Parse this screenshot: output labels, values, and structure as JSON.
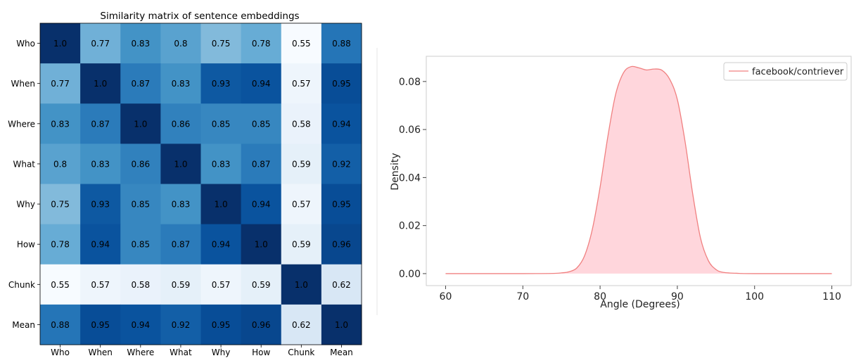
{
  "chart_data": [
    {
      "type": "heatmap",
      "title": "Similarity matrix of sentence embeddings",
      "x_labels": [
        "Who",
        "When",
        "Where",
        "What",
        "Why",
        "How",
        "Chunk",
        "Mean"
      ],
      "y_labels": [
        "Who",
        "When",
        "Where",
        "What",
        "Why",
        "How",
        "Chunk",
        "Mean"
      ],
      "values": [
        [
          "1.0",
          "0.77",
          "0.83",
          "0.8",
          "0.75",
          "0.78",
          "0.55",
          "0.88"
        ],
        [
          "0.77",
          "1.0",
          "0.87",
          "0.83",
          "0.93",
          "0.94",
          "0.57",
          "0.95"
        ],
        [
          "0.83",
          "0.87",
          "1.0",
          "0.86",
          "0.85",
          "0.85",
          "0.58",
          "0.94"
        ],
        [
          "0.8",
          "0.83",
          "0.86",
          "1.0",
          "0.83",
          "0.87",
          "0.59",
          "0.92"
        ],
        [
          "0.75",
          "0.93",
          "0.85",
          "0.83",
          "1.0",
          "0.94",
          "0.57",
          "0.95"
        ],
        [
          "0.78",
          "0.94",
          "0.85",
          "0.87",
          "0.94",
          "1.0",
          "0.59",
          "0.96"
        ],
        [
          "0.55",
          "0.57",
          "0.58",
          "0.59",
          "0.57",
          "0.59",
          "1.0",
          "0.62"
        ],
        [
          "0.88",
          "0.95",
          "0.94",
          "0.92",
          "0.95",
          "0.96",
          "0.62",
          "1.0"
        ]
      ],
      "colormap": "Blues",
      "value_range": [
        0.55,
        1.0
      ]
    },
    {
      "type": "area",
      "title": "",
      "xlabel": "Angle (Degrees)",
      "ylabel": "Density",
      "xlim": [
        57.5,
        112.5
      ],
      "ylim": [
        -0.005,
        0.0905
      ],
      "x_ticks": [
        "60",
        "70",
        "80",
        "90",
        "100",
        "110"
      ],
      "y_ticks": [
        "0.00",
        "0.02",
        "0.04",
        "0.06",
        "0.08"
      ],
      "grid": false,
      "legend": "top-right",
      "series": [
        {
          "name": "facebook/contriever",
          "color": "#f08080",
          "fill": "#ffd6dc",
          "x": [
            60,
            70,
            74,
            75,
            76,
            77,
            78,
            79,
            80,
            81,
            82,
            83,
            84,
            85,
            86,
            87,
            88,
            89,
            90,
            91,
            92,
            93,
            94,
            95,
            96,
            98,
            100,
            110
          ],
          "y": [
            0,
            0,
            0.0001,
            0.0003,
            0.0008,
            0.0024,
            0.0075,
            0.0185,
            0.036,
            0.057,
            0.0745,
            0.0835,
            0.0862,
            0.0857,
            0.0848,
            0.0852,
            0.0847,
            0.081,
            0.0725,
            0.055,
            0.033,
            0.0148,
            0.0055,
            0.0017,
            0.0005,
            0.0001,
            0,
            0
          ]
        }
      ]
    }
  ]
}
